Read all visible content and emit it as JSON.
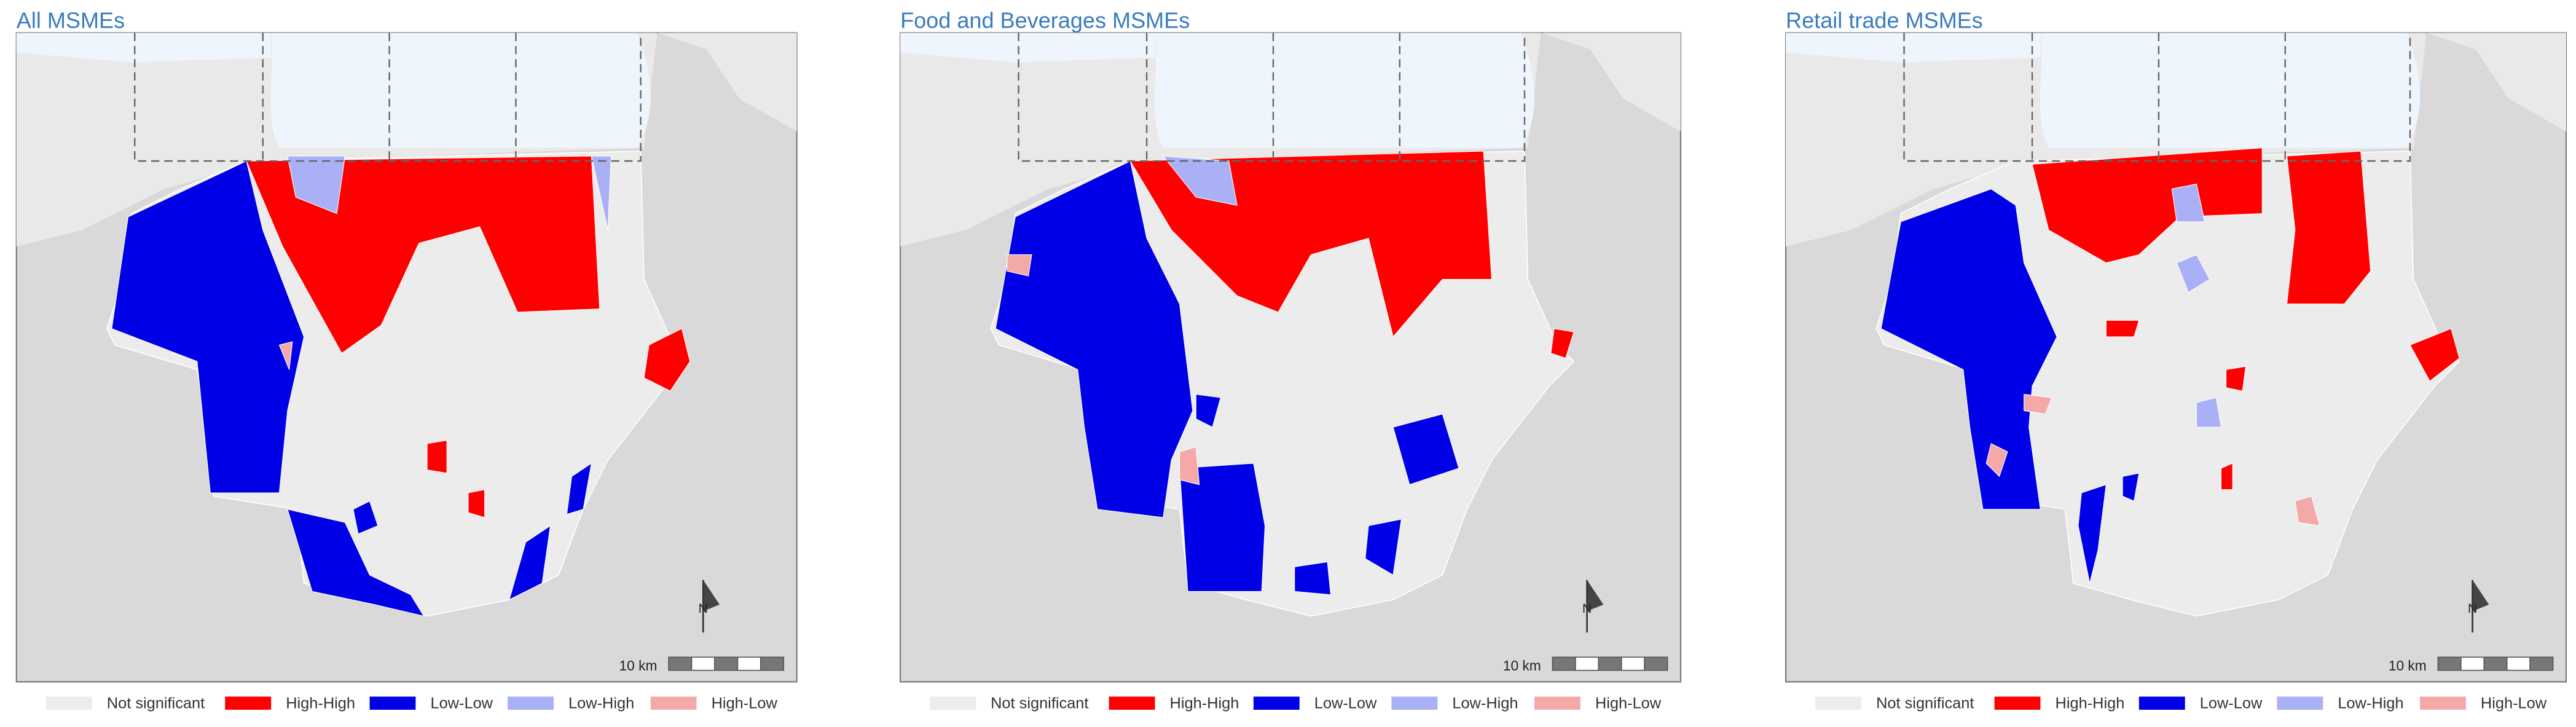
{
  "panels": [
    {
      "title": "All MSMEs",
      "scale_label": "10 km",
      "north_label": "N"
    },
    {
      "title": "Food and Beverages MSMEs",
      "scale_label": "10 km",
      "north_label": "N"
    },
    {
      "title": "Retail trade MSMEs",
      "scale_label": "10 km",
      "north_label": "N"
    }
  ],
  "legend": [
    {
      "label": "Not significant",
      "color": "#ececec"
    },
    {
      "label": "High-High",
      "color": "#ff0000"
    },
    {
      "label": "Low-Low",
      "color": "#0000e6"
    },
    {
      "label": "Low-High",
      "color": "#aab0f5"
    },
    {
      "label": "High-Low",
      "color": "#f4a9a9"
    }
  ]
}
